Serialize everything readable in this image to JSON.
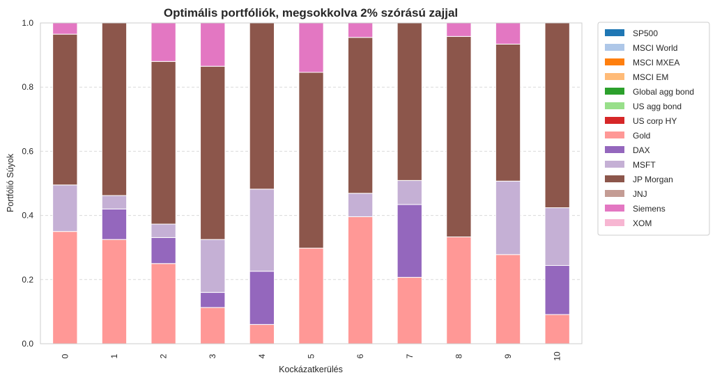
{
  "chart_data": {
    "type": "bar",
    "stacked": true,
    "title": "Optimális portfóliók, megsokkolva 2% szórású zajjal",
    "xlabel": "Kockázatkerülés",
    "ylabel": "Portfólió Súyok",
    "ylim": [
      0,
      1.0
    ],
    "yticks": [
      "0.0",
      "0.2",
      "0.4",
      "0.6",
      "0.8",
      "1.0"
    ],
    "grid": "horizontal-dashed",
    "legend_position": "outside-right",
    "categories": [
      "0",
      "1",
      "2",
      "3",
      "4",
      "5",
      "6",
      "7",
      "8",
      "9",
      "10"
    ],
    "series": [
      {
        "name": "SP500",
        "color": "#1f77b4",
        "values": [
          0,
          0,
          0,
          0,
          0,
          0,
          0,
          0,
          0,
          0,
          0
        ]
      },
      {
        "name": "MSCI World",
        "color": "#aec7e8",
        "values": [
          0,
          0,
          0,
          0,
          0,
          0,
          0,
          0,
          0,
          0,
          0
        ]
      },
      {
        "name": "MSCI MXEA",
        "color": "#ff7f0e",
        "values": [
          0,
          0,
          0,
          0,
          0,
          0,
          0,
          0,
          0,
          0,
          0
        ]
      },
      {
        "name": "MSCI EM",
        "color": "#ffbb78",
        "values": [
          0,
          0,
          0,
          0,
          0,
          0,
          0,
          0,
          0,
          0,
          0
        ]
      },
      {
        "name": "Global agg bond",
        "color": "#2ca02c",
        "values": [
          0,
          0,
          0,
          0,
          0,
          0,
          0,
          0,
          0,
          0,
          0
        ]
      },
      {
        "name": "US agg bond",
        "color": "#98df8a",
        "values": [
          0,
          0,
          0,
          0,
          0,
          0,
          0,
          0,
          0,
          0,
          0
        ]
      },
      {
        "name": "US corp HY",
        "color": "#d62728",
        "values": [
          0,
          0,
          0,
          0,
          0,
          0,
          0,
          0,
          0,
          0,
          0
        ]
      },
      {
        "name": "Gold",
        "color": "#ff9896",
        "values": [
          0.35,
          0.325,
          0.25,
          0.113,
          0.06,
          0.298,
          0.396,
          0.207,
          0.333,
          0.278,
          0.091
        ]
      },
      {
        "name": "DAX",
        "color": "#9467bd",
        "values": [
          0,
          0.095,
          0.081,
          0.047,
          0.166,
          0,
          0,
          0.227,
          0,
          0,
          0.153
        ]
      },
      {
        "name": "MSFT",
        "color": "#c5b0d5",
        "values": [
          0.145,
          0.042,
          0.042,
          0.165,
          0.256,
          0,
          0.073,
          0.075,
          0,
          0.229,
          0.18
        ]
      },
      {
        "name": "JP Morgan",
        "color": "#8c564b",
        "values": [
          0.47,
          0.538,
          0.507,
          0.54,
          0.518,
          0.548,
          0.486,
          0.491,
          0.625,
          0.427,
          0.576
        ]
      },
      {
        "name": "JNJ",
        "color": "#c49c94",
        "values": [
          0,
          0,
          0,
          0,
          0,
          0,
          0,
          0,
          0,
          0,
          0
        ]
      },
      {
        "name": "Siemens",
        "color": "#e377c2",
        "values": [
          0.035,
          0,
          0.12,
          0.135,
          0,
          0.154,
          0.045,
          0,
          0.042,
          0.066,
          0
        ]
      },
      {
        "name": "XOM",
        "color": "#f7b6d2",
        "values": [
          0,
          0,
          0,
          0,
          0,
          0,
          0,
          0,
          0,
          0,
          0
        ]
      }
    ]
  }
}
